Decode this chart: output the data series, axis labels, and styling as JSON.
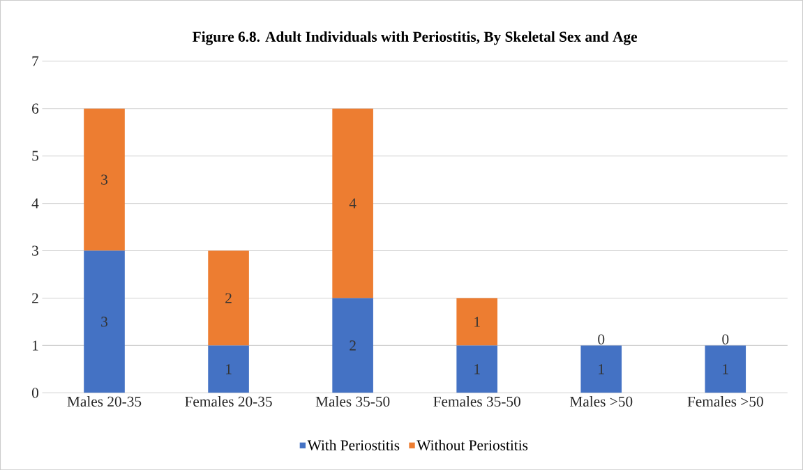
{
  "chart_data": {
    "type": "bar",
    "stacked": true,
    "title": "Figure 6.8. Adult Individuals with Periostitis, By Skeletal Sex and Age",
    "categories": [
      "Males 20-35",
      "Females 20-35",
      "Males 35-50",
      "Females 35-50",
      "Males >50",
      "Females >50"
    ],
    "series": [
      {
        "name": "With Periostitis",
        "color": "#4472c4",
        "values": [
          3,
          1,
          2,
          1,
          1,
          1
        ]
      },
      {
        "name": "Without Periostitis",
        "color": "#ed7d31",
        "values": [
          3,
          2,
          4,
          1,
          0,
          0
        ]
      }
    ],
    "ylim": [
      0,
      7
    ],
    "yticks": [
      0,
      1,
      2,
      3,
      4,
      5,
      6,
      7
    ],
    "grid": "y",
    "legend": "bottom",
    "data_labels": true
  }
}
